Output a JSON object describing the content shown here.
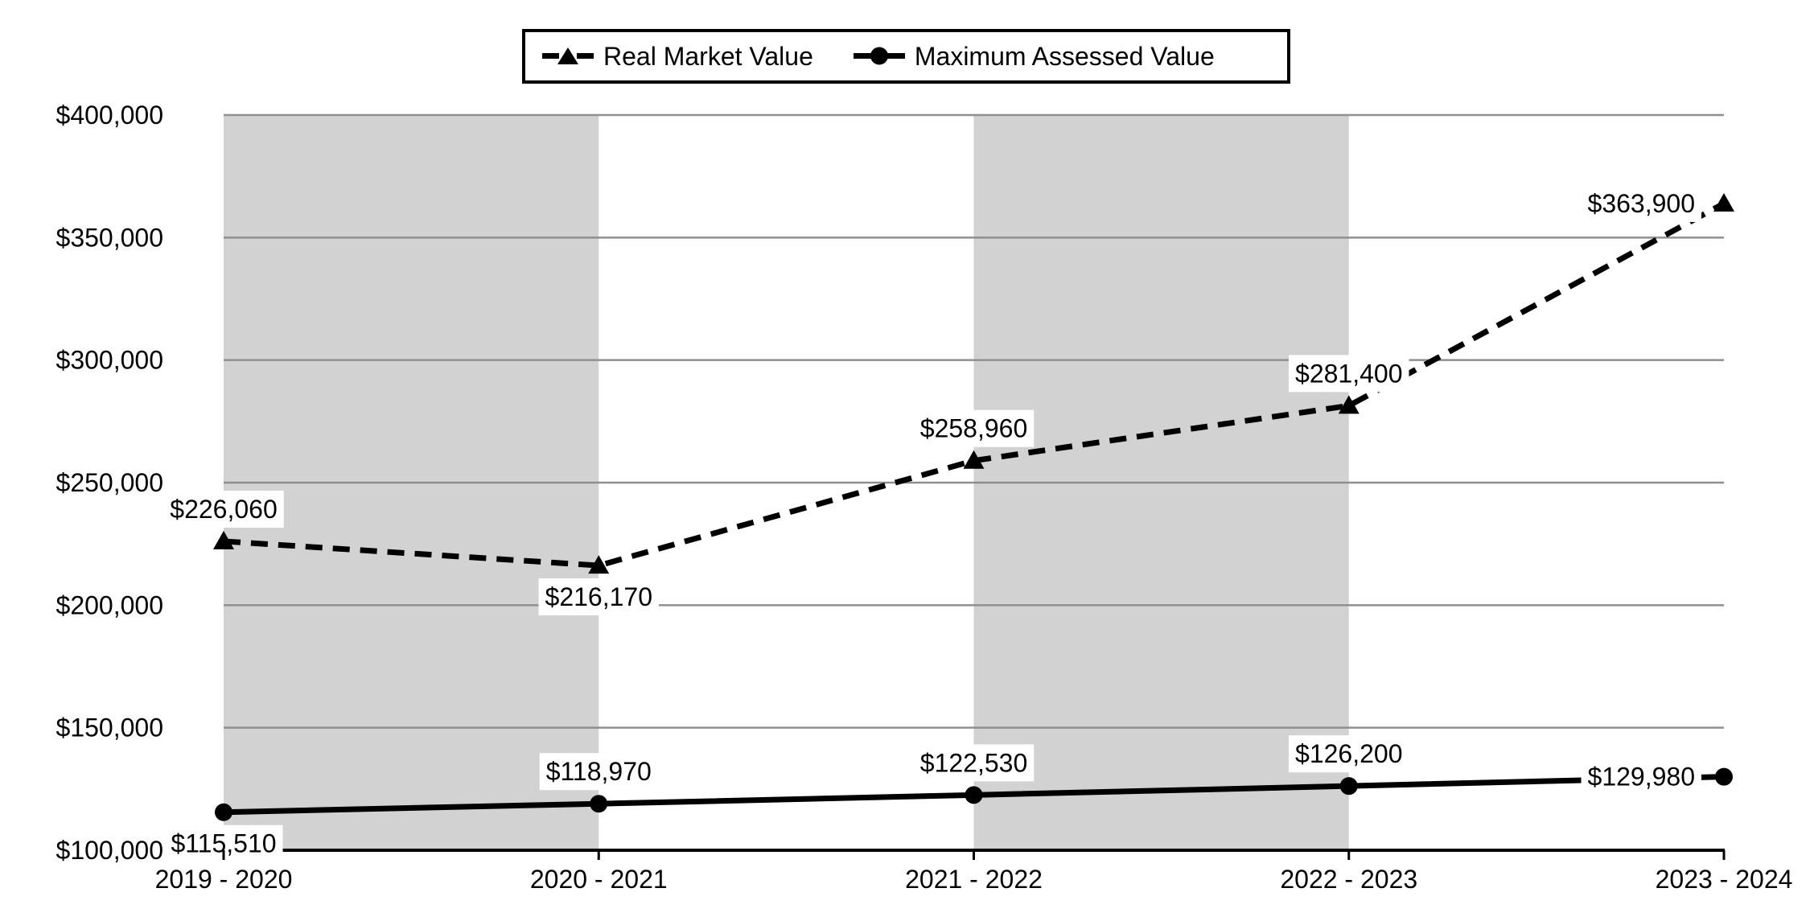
{
  "legend": {
    "items": [
      {
        "label": "Real Market Value",
        "marker": "triangle",
        "line_style": "dashed"
      },
      {
        "label": "Maximum Assessed Value",
        "marker": "circle",
        "line_style": "solid"
      }
    ]
  },
  "chart_data": {
    "type": "line",
    "categories": [
      "2019 - 2020",
      "2020 - 2021",
      "2021 - 2022",
      "2022 - 2023",
      "2023 - 2024"
    ],
    "series": [
      {
        "name": "Real Market Value",
        "marker": "triangle",
        "line_style": "dashed",
        "values": [
          226060,
          216170,
          258960,
          281400,
          363900
        ],
        "data_labels": [
          "$226,060",
          "$216,170",
          "$258,960",
          "$281,400",
          "$363,900"
        ],
        "label_positions": [
          "above",
          "below",
          "above",
          "above",
          "left"
        ]
      },
      {
        "name": "Maximum Assessed Value",
        "marker": "circle",
        "line_style": "solid",
        "values": [
          115510,
          118970,
          122530,
          126200,
          129980
        ],
        "data_labels": [
          "$115,510",
          "$118,970",
          "$122,530",
          "$126,200",
          "$129,980"
        ],
        "label_positions": [
          "below",
          "above",
          "above",
          "above",
          "left"
        ]
      }
    ],
    "ylim": [
      100000,
      400000
    ],
    "ytick_step": 50000,
    "ytick_labels": [
      "$400,000",
      "$350,000",
      "$300,000",
      "$250,000",
      "$200,000",
      "$150,000",
      "$100,000"
    ],
    "grid": true,
    "legend_position": "top-center",
    "shaded_band_pairs": [
      [
        0,
        1
      ],
      [
        2,
        3
      ]
    ],
    "colors": {
      "series": "#000000",
      "gridline": "#8f8f8f",
      "band": "#d2d2d2",
      "axis": "#000000",
      "label_background": "#ffffff",
      "background": "#ffffff"
    }
  }
}
